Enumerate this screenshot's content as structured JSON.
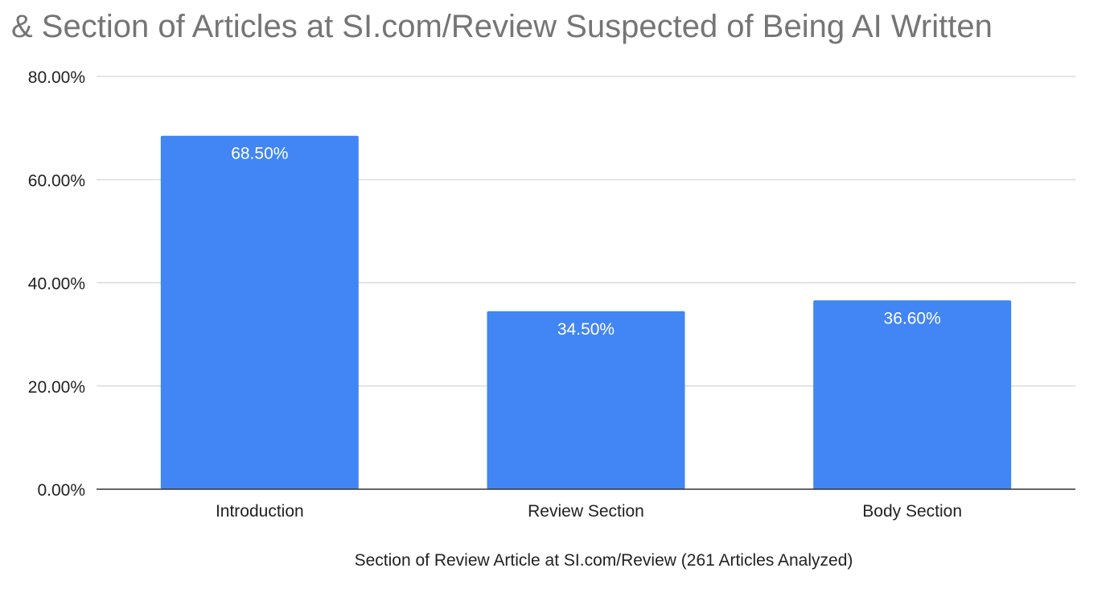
{
  "chart_data": {
    "type": "bar",
    "title": "& Section of Articles at SI.com/Review Suspected of Being AI Written",
    "xlabel": "Section of Review Article at SI.com/Review (261 Articles Analyzed)",
    "ylabel": "",
    "categories": [
      "Introduction",
      "Review Section",
      "Body Section"
    ],
    "values": [
      68.5,
      34.5,
      36.6
    ],
    "data_labels": [
      "68.50%",
      "34.50%",
      "36.60%"
    ],
    "ylim": [
      0,
      80
    ],
    "yticks": [
      0,
      20,
      40,
      60,
      80
    ],
    "ytick_labels": [
      "0.00%",
      "20.00%",
      "40.00%",
      "60.00%",
      "80.00%"
    ],
    "grid": true,
    "legend": "none",
    "colors": {
      "bar": "#4285f4",
      "grid": "#cccccc",
      "axis": "#333333",
      "title": "#757575"
    }
  }
}
